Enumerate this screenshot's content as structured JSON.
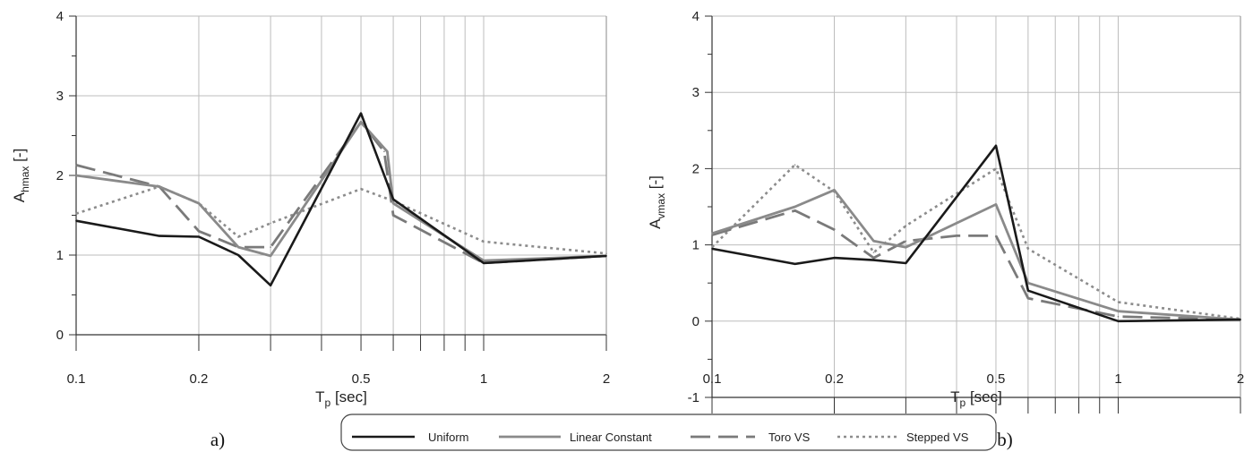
{
  "chart_data": [
    {
      "type": "line",
      "panel_label": "a)",
      "xlabel": "T",
      "xlabel_sub": "p",
      "xlabel_unit": " [sec]",
      "ylabel": "A",
      "ylabel_sub": "hmax",
      "ylabel_unit": " [-]",
      "x_scale": "log",
      "xlim": [
        0.1,
        2
      ],
      "ylim": [
        0,
        4
      ],
      "x_ticks": [
        0.1,
        0.2,
        0.5,
        1,
        2
      ],
      "x_tick_labels": [
        "0.1",
        "0.2",
        "0.5",
        "1",
        "2"
      ],
      "y_ticks": [
        0,
        1,
        2,
        3,
        4
      ],
      "y_tick_labels": [
        "0",
        "1",
        "2",
        "3",
        "4"
      ],
      "grid": true,
      "series": [
        {
          "name": "Uniform",
          "x": [
            0.1,
            0.16,
            0.2,
            0.25,
            0.3,
            0.5,
            0.6,
            1,
            2
          ],
          "y": [
            1.43,
            1.24,
            1.23,
            1.0,
            0.62,
            2.78,
            1.7,
            0.9,
            0.99
          ]
        },
        {
          "name": "Linear Constant",
          "x": [
            0.1,
            0.16,
            0.2,
            0.25,
            0.3,
            0.5,
            0.58,
            0.6,
            1,
            2
          ],
          "y": [
            2.0,
            1.86,
            1.65,
            1.1,
            0.99,
            2.67,
            2.3,
            1.65,
            0.93,
            0.99
          ]
        },
        {
          "name": "Toro VS",
          "x": [
            0.1,
            0.16,
            0.2,
            0.25,
            0.3,
            0.5,
            0.57,
            0.6,
            1,
            2
          ],
          "y": [
            2.13,
            1.86,
            1.3,
            1.1,
            1.1,
            2.67,
            2.3,
            1.5,
            0.9,
            0.99
          ]
        },
        {
          "name": "Stepped VS",
          "x": [
            0.1,
            0.16,
            0.2,
            0.25,
            0.3,
            0.5,
            0.6,
            1,
            2
          ],
          "y": [
            1.52,
            1.86,
            1.65,
            1.23,
            1.4,
            1.83,
            1.68,
            1.17,
            1.02
          ]
        }
      ]
    },
    {
      "type": "line",
      "panel_label": "b)",
      "xlabel": "T",
      "xlabel_sub": "p",
      "xlabel_unit": " [sec]",
      "ylabel": "A",
      "ylabel_sub": "vmax",
      "ylabel_unit": " [-]",
      "x_scale": "log",
      "xlim": [
        0.1,
        2
      ],
      "ylim": [
        -1,
        4
      ],
      "x_ticks": [
        0.1,
        0.2,
        0.5,
        1,
        2
      ],
      "x_tick_labels": [
        "0.1",
        "0.2",
        "0.5",
        "1",
        "2"
      ],
      "y_ticks": [
        -1,
        0,
        1,
        2,
        3,
        4
      ],
      "y_tick_labels": [
        "-1",
        "0",
        "1",
        "2",
        "3",
        "4"
      ],
      "grid": true,
      "series": [
        {
          "name": "Uniform",
          "x": [
            0.1,
            0.16,
            0.2,
            0.25,
            0.3,
            0.5,
            0.6,
            1,
            2
          ],
          "y": [
            0.95,
            0.75,
            0.83,
            0.8,
            0.76,
            2.3,
            0.4,
            0.0,
            0.02
          ]
        },
        {
          "name": "Linear Constant",
          "x": [
            0.1,
            0.16,
            0.2,
            0.25,
            0.3,
            0.5,
            0.6,
            1,
            2
          ],
          "y": [
            1.15,
            1.5,
            1.72,
            1.05,
            0.97,
            1.53,
            0.5,
            0.13,
            0.02
          ]
        },
        {
          "name": "Toro VS",
          "x": [
            0.1,
            0.16,
            0.2,
            0.25,
            0.3,
            0.4,
            0.5,
            0.6,
            1,
            2
          ],
          "y": [
            1.13,
            1.45,
            1.2,
            0.83,
            1.05,
            1.12,
            1.12,
            0.3,
            0.06,
            0.02
          ]
        },
        {
          "name": "Stepped VS",
          "x": [
            0.1,
            0.16,
            0.2,
            0.25,
            0.3,
            0.5,
            0.6,
            1,
            2
          ],
          "y": [
            0.97,
            2.05,
            1.7,
            0.9,
            1.25,
            2.0,
            0.95,
            0.25,
            0.03
          ]
        }
      ]
    }
  ],
  "legend": {
    "placement": "bottom-center",
    "entries": [
      {
        "name": "Uniform",
        "color": "#1a1a1a",
        "style": "solid"
      },
      {
        "name": "Linear Constant",
        "color": "#8a8a8a",
        "style": "solid"
      },
      {
        "name": "Toro VS",
        "color": "#7a7a7a",
        "style": "dashed"
      },
      {
        "name": "Stepped VS",
        "color": "#8c8c8c",
        "style": "dotted"
      }
    ]
  }
}
